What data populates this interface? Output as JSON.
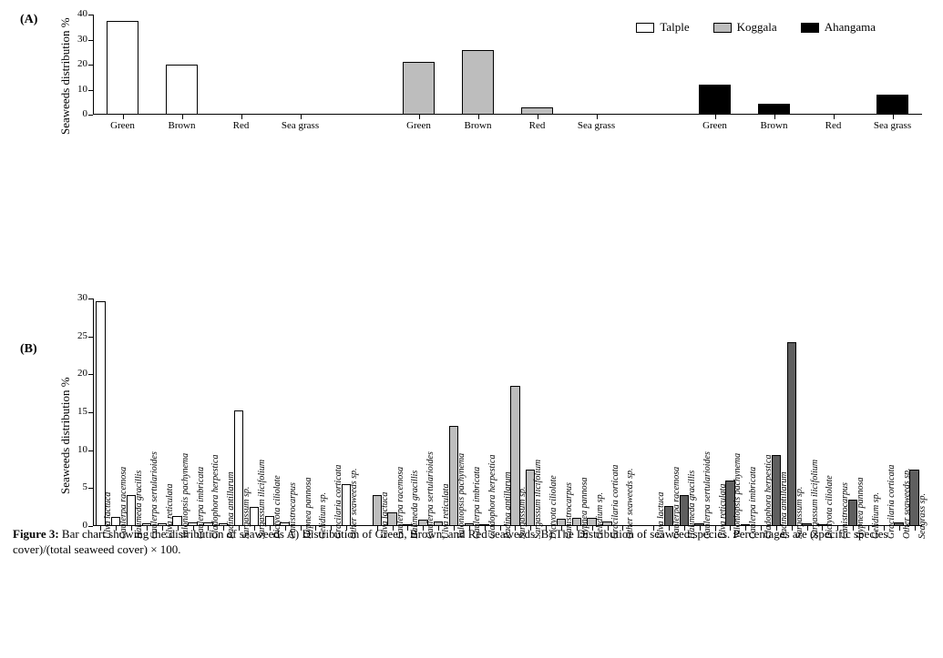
{
  "panel_A_label": "(A)",
  "panel_B_label": "(B)",
  "yLabelA": "Seaweeds distribution %",
  "yLabelB": "Seaweeds distribution %",
  "legend": [
    {
      "name": "Talple",
      "fill": "#ffffff",
      "stroke": "#000000"
    },
    {
      "name": "Koggala",
      "fill": "#bdbdbd",
      "stroke": "#000000"
    },
    {
      "name": "Ahangama",
      "fill": "#000000",
      "stroke": "#000000"
    }
  ],
  "caption_lead": "Figure 3: ",
  "caption_body": "Bar chart showing the distribution of seaweeds A) Distribution of Green, Brown, and Red seaweeds. B) The Distribution of seaweed species. Percentages are (specific species cover)/(total seaweed cover) × 100.",
  "chartA": {
    "type": "bar",
    "ymin": 0,
    "ymax": 40,
    "ytick_step": 10,
    "background_color": "#ffffff",
    "axis_color": "#000000",
    "bar_rel_width": 0.55,
    "tick_fontsize": 11,
    "label_fontsize": 13,
    "groups": [
      {
        "site": "Talple",
        "fill": "#ffffff",
        "stroke": "#000000",
        "cats": [
          "Green",
          "Brown",
          "Red",
          "Sea grass"
        ],
        "values": [
          37.5,
          20,
          0,
          0
        ]
      },
      {
        "site": "Koggala",
        "fill": "#bdbdbd",
        "stroke": "#000000",
        "cats": [
          "Green",
          "Brown",
          "Red",
          "Sea grass"
        ],
        "values": [
          21,
          26,
          3,
          0
        ]
      },
      {
        "site": "Ahangama",
        "fill": "#000000",
        "stroke": "#000000",
        "cats": [
          "Green",
          "Brown",
          "Red",
          "Sea grass"
        ],
        "values": [
          12,
          4.5,
          0,
          8
        ]
      }
    ]
  },
  "chartB": {
    "type": "bar",
    "ymin": 0,
    "ymax": 30,
    "ytick_step": 5,
    "background_color": "#ffffff",
    "axis_color": "#000000",
    "bar_rel_width": 0.62,
    "tick_fontsize": 11,
    "label_fontsize": 13,
    "x_label_fontsize": 10,
    "groups": [
      {
        "site": "Talple",
        "fill": "#ffffff",
        "stroke": "#000000",
        "bars": [
          {
            "label": "Ulva lactuca",
            "value": 29.7
          },
          {
            "label": "Caulerpa racemosa",
            "value": 1.2
          },
          {
            "label": "Halimeda gracillis",
            "value": 4.1
          },
          {
            "label": "Caulerpa sertularioides",
            "value": 0.4
          },
          {
            "label": "Ulva reticulata",
            "value": 0.4
          },
          {
            "label": "Valoniopsis pachynema",
            "value": 1.3
          },
          {
            "label": "Caulerpa imbricata",
            "value": 0.5
          },
          {
            "label": "Cladophora herpestica",
            "value": 0.5
          },
          {
            "label": "Padina antillarum",
            "value": 0.4
          },
          {
            "label": "Sargassum sp.",
            "value": 15.3
          },
          {
            "label": "Sargassum ilicifolium",
            "value": 2.5
          },
          {
            "label": "Dictyota ciliolate",
            "value": 1.3
          },
          {
            "label": "Canistrocarpus",
            "value": 0.5
          },
          {
            "label": "Hypnea pannosa",
            "value": 0.0
          },
          {
            "label": "Gelidium sp.",
            "value": 0.0
          },
          {
            "label": "Gracilaria corticata",
            "value": 0.0
          },
          {
            "label": "Other seaweeds sp.",
            "value": 5.5
          }
        ]
      },
      {
        "site": "Koggala",
        "fill": "#bdbdbd",
        "stroke": "#000000",
        "bars": [
          {
            "label": "Ulva lactuca",
            "value": 4.1
          },
          {
            "label": "Caulerpa racemosa",
            "value": 1.8
          },
          {
            "label": "Halimeda gracillis",
            "value": 0.3
          },
          {
            "label": "Caulerpa sertularioides",
            "value": 0.8
          },
          {
            "label": "Ulva reticulata",
            "value": 0.6
          },
          {
            "label": "Valoniopsis pachynema",
            "value": 13.2
          },
          {
            "label": "Caulerpa imbricata",
            "value": 0.4
          },
          {
            "label": "Cladophora herpestica",
            "value": 0.3
          },
          {
            "label": "Padina antillarum",
            "value": 0.0
          },
          {
            "label": "Sargassum sp.",
            "value": 18.5
          },
          {
            "label": "Sargassum ilicifolium",
            "value": 7.4
          },
          {
            "label": "Dictyota ciliolate",
            "value": 0.0
          },
          {
            "label": "Canistrocarpus",
            "value": 1.0
          },
          {
            "label": "Hypnea pannosa",
            "value": 1.1
          },
          {
            "label": "Gelidium sp.",
            "value": 1.1
          },
          {
            "label": "Gracilaria corticata",
            "value": 0.6
          },
          {
            "label": "Other seaweeds sp.",
            "value": 0.0
          }
        ]
      },
      {
        "site": "Ahangama",
        "fill": "#5f5f5f",
        "stroke": "#000000",
        "bars": [
          {
            "label": "Ulva lactuca",
            "value": 0.0
          },
          {
            "label": "Caulerpa racemosa",
            "value": 2.6
          },
          {
            "label": "Halimeda gracillis",
            "value": 4.1
          },
          {
            "label": "Caulerpa sertularioides",
            "value": 0.4
          },
          {
            "label": "Ulva reticulata",
            "value": 0.0
          },
          {
            "label": "Valoniopsis pachynema",
            "value": 6.0
          },
          {
            "label": "Caulerpa imbricata",
            "value": 0.2
          },
          {
            "label": "Cladophora herpestica",
            "value": 0.0
          },
          {
            "label": "Padina antillarum",
            "value": 9.4
          },
          {
            "label": "Sargassum sp.",
            "value": 24.2
          },
          {
            "label": "Sargassum ilicifolium",
            "value": 0.4
          },
          {
            "label": "Dictyota ciliolate",
            "value": 0.2
          },
          {
            "label": "Canistrocarpus",
            "value": 0.0
          },
          {
            "label": "Hypnea pannosa",
            "value": 3.5
          },
          {
            "label": "Gelidium sp.",
            "value": 0.0
          },
          {
            "label": "Gracilaria corticata",
            "value": 0.0
          },
          {
            "label": "Other seaweeds sp.",
            "value": 0.5
          },
          {
            "label": "Seagrass sp.",
            "value": 7.5
          }
        ]
      }
    ]
  }
}
